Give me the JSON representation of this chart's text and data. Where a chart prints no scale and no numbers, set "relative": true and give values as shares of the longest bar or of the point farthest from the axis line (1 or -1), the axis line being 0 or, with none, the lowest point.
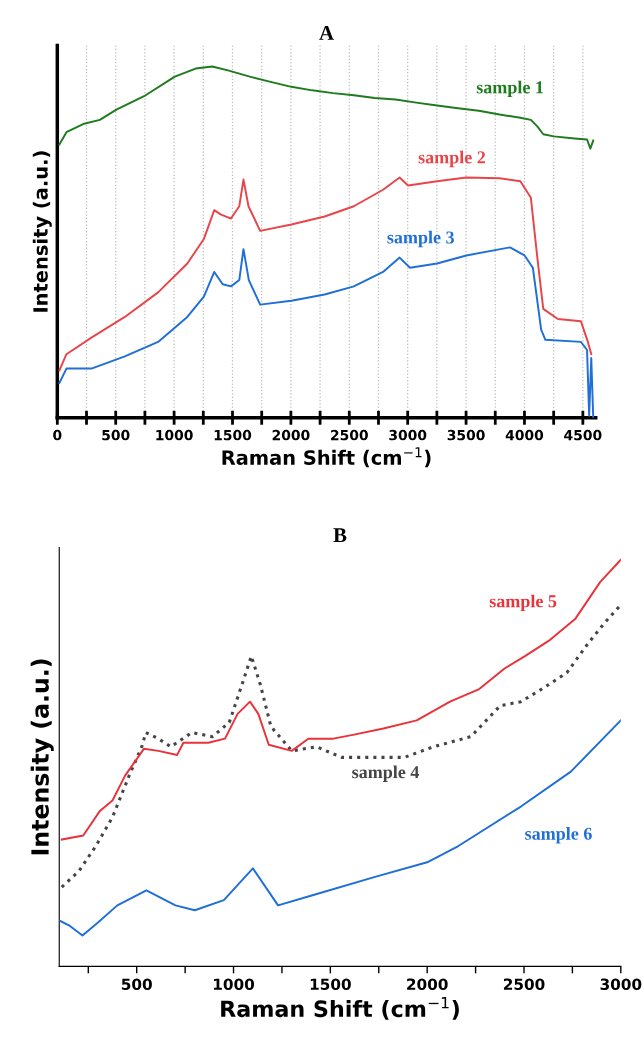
{
  "chart_data": [
    {
      "type": "line",
      "title": "A",
      "xlabel": "Raman Shift (cm$^{−1}$)",
      "ylabel": "Intensity (a.u.)",
      "relative": true,
      "grid": "x",
      "tick_labels": "x",
      "xlim": [
        0,
        4610
      ],
      "xticks": [
        0,
        {
          "value": 250,
          "label": null
        },
        500,
        {
          "value": 750,
          "label": null
        },
        1000,
        {
          "value": 1250,
          "label": null
        },
        1500,
        {
          "value": 1750,
          "label": null
        },
        2000,
        {
          "value": 2250,
          "label": null
        },
        2500,
        {
          "value": 2750,
          "label": null
        },
        3000,
        {
          "value": 3250,
          "label": null
        },
        3500,
        {
          "value": 3750,
          "label": null
        },
        4000,
        {
          "value": 4250,
          "label": null
        },
        4500
      ],
      "series": [
        {
          "name": "sample 1",
          "color": "#1e7b1e",
          "x": [
            18,
            78,
            221,
            364,
            506,
            756,
            1006,
            1184,
            1327,
            1469,
            1648,
            1826,
            2004,
            2182,
            2361,
            2539,
            2717,
            2896,
            3074,
            3252,
            3431,
            3609,
            3787,
            3965,
            4055,
            4108,
            4161,
            4251,
            4429,
            4536,
            4564,
            4589
          ],
          "values": [
            0.778,
            0.813,
            0.836,
            0.848,
            0.877,
            0.918,
            0.971,
            0.994,
            1.0,
            0.988,
            0.971,
            0.956,
            0.942,
            0.932,
            0.924,
            0.918,
            0.91,
            0.906,
            0.897,
            0.889,
            0.881,
            0.874,
            0.863,
            0.854,
            0.848,
            0.83,
            0.807,
            0.801,
            0.795,
            0.792,
            0.766,
            0.789
          ]
        },
        {
          "name": "sample 2",
          "color": "#e8454a",
          "x": [
            18,
            78,
            292,
            578,
            863,
            1113,
            1255,
            1344,
            1398,
            1487,
            1558,
            1594,
            1637,
            1737,
            2004,
            2289,
            2539,
            2789,
            2931,
            3003,
            3252,
            3502,
            3787,
            3965,
            4055,
            4108,
            4161,
            4286,
            4483,
            4543,
            4572
          ],
          "values": [
            0.135,
            0.181,
            0.228,
            0.287,
            0.357,
            0.439,
            0.509,
            0.591,
            0.579,
            0.567,
            0.602,
            0.678,
            0.602,
            0.532,
            0.55,
            0.573,
            0.602,
            0.649,
            0.684,
            0.661,
            0.673,
            0.684,
            0.682,
            0.673,
            0.626,
            0.462,
            0.31,
            0.281,
            0.275,
            0.216,
            0.181
          ]
        },
        {
          "name": "sample 3",
          "color": "#1f6fd6",
          "x": [
            18,
            78,
            292,
            578,
            863,
            1113,
            1255,
            1344,
            1416,
            1487,
            1558,
            1594,
            1640,
            1737,
            2004,
            2289,
            2539,
            2789,
            2931,
            3020,
            3252,
            3502,
            3876,
            4001,
            4072,
            4143,
            4179,
            4483,
            4536,
            4554,
            4572,
            4589
          ],
          "values": [
            0.099,
            0.14,
            0.14,
            0.175,
            0.216,
            0.287,
            0.345,
            0.415,
            0.38,
            0.374,
            0.392,
            0.48,
            0.392,
            0.322,
            0.333,
            0.351,
            0.374,
            0.415,
            0.456,
            0.427,
            0.439,
            0.462,
            0.485,
            0.462,
            0.427,
            0.251,
            0.222,
            0.216,
            0.193,
            0.006,
            0.17,
            0.0
          ]
        }
      ]
    },
    {
      "type": "line",
      "title": "B",
      "xlabel": "Raman Shift (cm$^{−1}$)",
      "ylabel": "Intensity (a.u.)",
      "relative": true,
      "tick_labels": "x",
      "xlim": [
        100,
        3000
      ],
      "xticks": [
        {
          "value": 250,
          "label": null
        },
        500,
        {
          "value": 750,
          "label": null
        },
        1000,
        {
          "value": 1250,
          "label": null
        },
        1500,
        {
          "value": 1750,
          "label": null
        },
        2000,
        {
          "value": 2250,
          "label": null
        },
        2500,
        {
          "value": 2750,
          "label": null
        },
        3000
      ],
      "series": [
        {
          "name": "sample 4",
          "color": "#444444",
          "line_style": "dotted",
          "x": [
            113,
            203,
            289,
            375,
            461,
            526,
            547,
            612,
            676,
            784,
            892,
            978,
            1043,
            1092,
            1139,
            1193,
            1301,
            1429,
            1558,
            1731,
            1882,
            2032,
            2226,
            2377,
            2484,
            2592,
            2721,
            2829,
            2915,
            3000
          ],
          "values": [
            0.195,
            0.235,
            0.296,
            0.367,
            0.469,
            0.54,
            0.575,
            0.56,
            0.54,
            0.575,
            0.565,
            0.6,
            0.692,
            0.763,
            0.692,
            0.59,
            0.53,
            0.54,
            0.514,
            0.514,
            0.514,
            0.54,
            0.565,
            0.641,
            0.651,
            0.682,
            0.722,
            0.793,
            0.844,
            0.889
          ]
        },
        {
          "name": "sample 5",
          "color": "#e8333a",
          "x": [
            113,
            224,
            311,
            375,
            440,
            537,
            612,
            709,
            741,
            870,
            956,
            1021,
            1085,
            1128,
            1182,
            1301,
            1386,
            1515,
            1623,
            1774,
            1946,
            2118,
            2269,
            2398,
            2505,
            2635,
            2764,
            2893,
            3000
          ],
          "values": [
            0.312,
            0.322,
            0.383,
            0.408,
            0.469,
            0.535,
            0.53,
            0.52,
            0.55,
            0.55,
            0.56,
            0.621,
            0.651,
            0.621,
            0.545,
            0.53,
            0.56,
            0.56,
            0.57,
            0.585,
            0.605,
            0.651,
            0.682,
            0.732,
            0.763,
            0.803,
            0.854,
            0.945,
            1.0
          ]
        },
        {
          "name": "sample 6",
          "color": "#1f6fd6",
          "x": [
            100,
            150,
            220,
            300,
            400,
            550,
            700,
            800,
            950,
            1100,
            1230,
            1408,
            1731,
            2000,
            2161,
            2484,
            2742,
            3000
          ],
          "values": [
            0.113,
            0.101,
            0.076,
            0.108,
            0.15,
            0.187,
            0.15,
            0.138,
            0.163,
            0.241,
            0.15,
            0.175,
            0.22,
            0.256,
            0.296,
            0.393,
            0.479,
            0.605
          ]
        }
      ]
    }
  ]
}
